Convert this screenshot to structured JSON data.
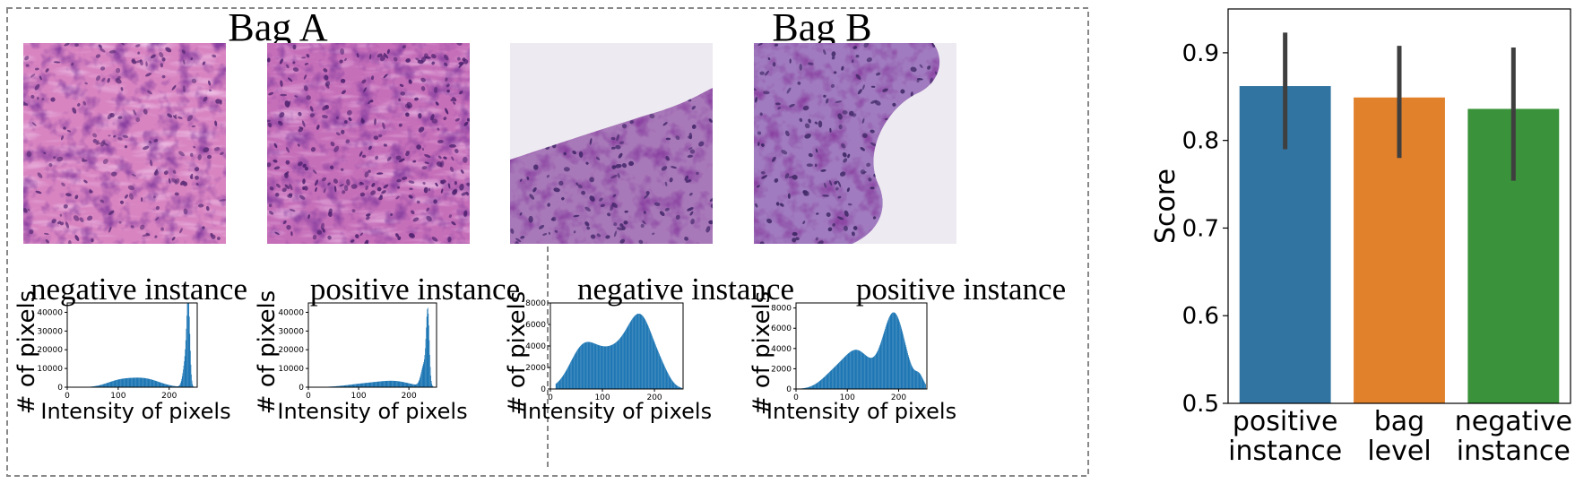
{
  "bags": [
    {
      "title": "Bag A",
      "panels": [
        {
          "caption": "negative instance",
          "tile": {
            "base": "#d884c1",
            "accent": "#5b2c77",
            "style": "stroma"
          },
          "hist": {
            "xlabel": "Intensity of pixels",
            "ylabel": "# of pixels",
            "xticks": [
              0,
              100,
              200
            ],
            "xlim": [
              0,
              255
            ],
            "yticks": [
              0,
              10000,
              20000,
              30000,
              40000
            ],
            "ylim": [
              0,
              45000
            ],
            "peaks": [
              [
                100,
                3000,
                25
              ],
              [
                150,
                4500,
                30
              ],
              [
                237,
                40000,
                3
              ],
              [
                232,
                15000,
                5
              ]
            ]
          }
        },
        {
          "caption": "positive instance",
          "tile": {
            "base": "#c66fb9",
            "accent": "#4a1f6c",
            "style": "dense"
          },
          "hist": {
            "xlabel": "Intensity of pixels",
            "ylabel": "# of pixels",
            "xticks": [
              0,
              100,
              200
            ],
            "xlim": [
              0,
              255
            ],
            "yticks": [
              0,
              10000,
              20000,
              30000,
              40000
            ],
            "ylim": [
              0,
              45000
            ],
            "peaks": [
              [
                120,
                2000,
                40
              ],
              [
                175,
                2500,
                30
              ],
              [
                237,
                36000,
                3
              ],
              [
                230,
                12000,
                6
              ]
            ]
          }
        }
      ]
    },
    {
      "title": "Bag B",
      "panels": [
        {
          "caption": "negative instance",
          "tile": {
            "base": "#a879b9",
            "accent": "#3f2467",
            "style": "edge-bottom"
          },
          "hist": {
            "xlabel": "Intensity of pixels",
            "ylabel": "# of pixels",
            "xticks": [
              0,
              100,
              200
            ],
            "xlim": [
              0,
              255
            ],
            "yticks": [
              0,
              2000,
              4000,
              6000,
              8000
            ],
            "ylim": [
              0,
              8000
            ],
            "peaks": [
              [
                60,
                3000,
                25
              ],
              [
                120,
                3500,
                40
              ],
              [
                175,
                5500,
                25
              ],
              [
                215,
                800,
                15
              ]
            ]
          }
        },
        {
          "caption": "positive instance",
          "tile": {
            "base": "#a07bbf",
            "accent": "#3a2461",
            "style": "finger"
          },
          "hist": {
            "xlabel": "Intensity of pixels",
            "ylabel": "# of pixels",
            "xticks": [
              0,
              100,
              200
            ],
            "xlim": [
              0,
              255
            ],
            "yticks": [
              0,
              2000,
              4000,
              6000,
              8000
            ],
            "ylim": [
              0,
              8500
            ],
            "peaks": [
              [
                75,
                1500,
                25
              ],
              [
                120,
                3500,
                25
              ],
              [
                190,
                7500,
                22
              ],
              [
                240,
                1000,
                8
              ]
            ]
          }
        }
      ]
    }
  ],
  "chart_data": {
    "type": "bar",
    "categories": [
      "positive\ninstance",
      "bag\nlevel",
      "negative\ninstance"
    ],
    "values": [
      0.862,
      0.849,
      0.836
    ],
    "errors_low": [
      0.79,
      0.78,
      0.754
    ],
    "errors_high": [
      0.923,
      0.908,
      0.906
    ],
    "colors": [
      "#3274a1",
      "#e1812c",
      "#3a923a"
    ],
    "title": "",
    "xlabel": "",
    "ylabel": "Score",
    "ylim": [
      0.5,
      0.95
    ],
    "yticks": [
      0.5,
      0.6,
      0.7,
      0.8,
      0.9
    ],
    "grid": false
  }
}
